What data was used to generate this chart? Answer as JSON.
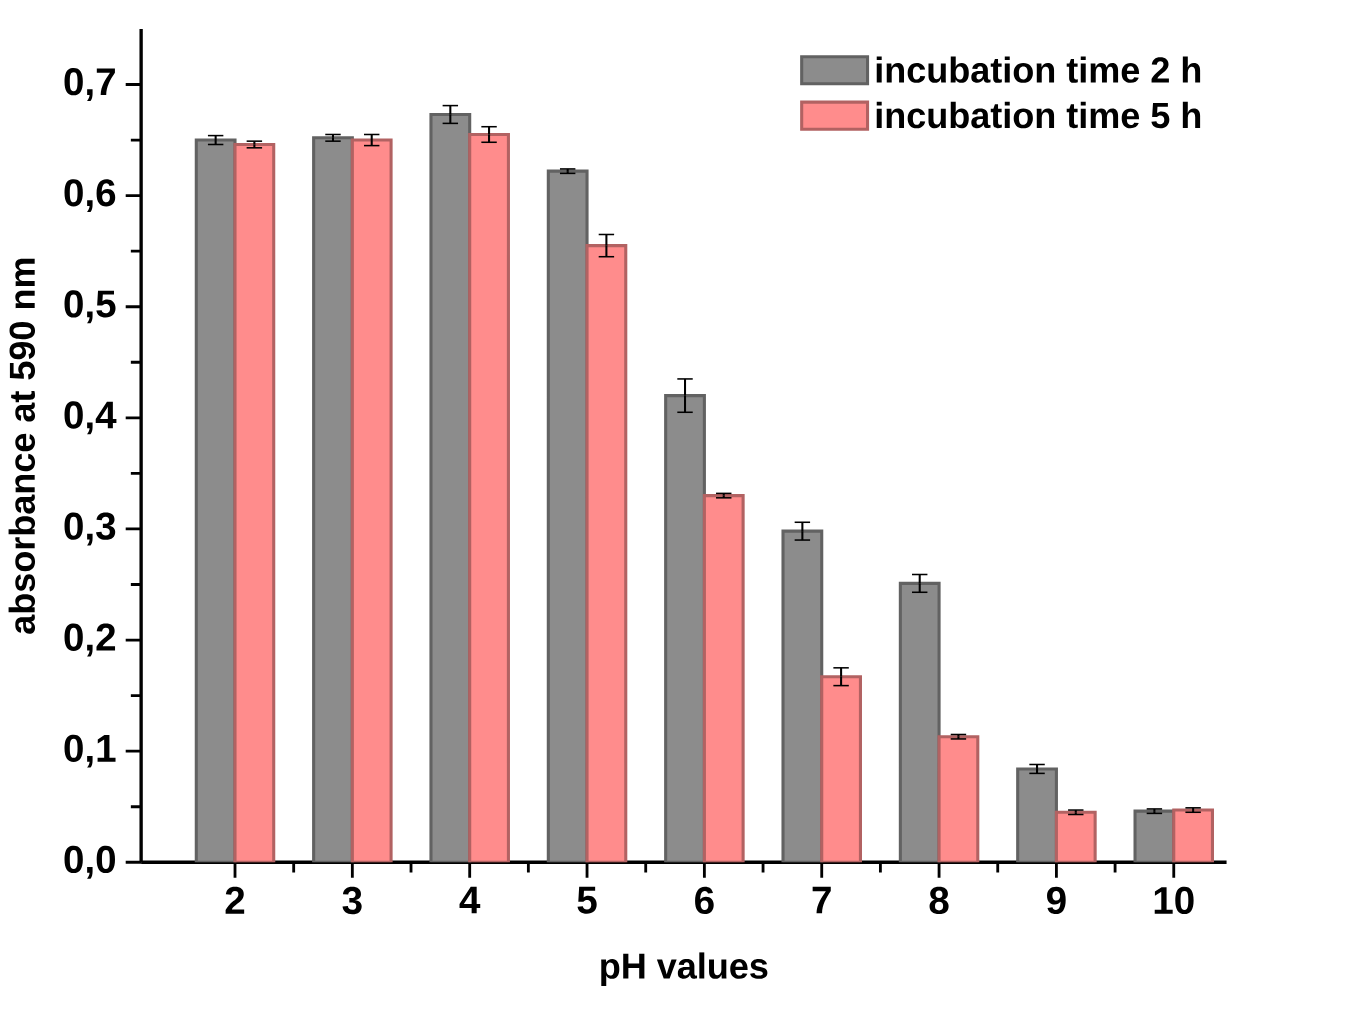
{
  "chart_data": {
    "type": "bar",
    "xlabel": "pH values",
    "ylabel": "absorbance at 590 nm",
    "categories": [
      "2",
      "3",
      "4",
      "5",
      "6",
      "7",
      "8",
      "9",
      "10"
    ],
    "series": [
      {
        "name": "incubation time 2 h",
        "color": "#8c8c8c",
        "values": [
          0.65,
          0.652,
          0.673,
          0.622,
          0.42,
          0.298,
          0.251,
          0.084,
          0.046
        ],
        "errors": [
          0.004,
          0.003,
          0.008,
          0.002,
          0.015,
          0.008,
          0.008,
          0.004,
          0.002
        ]
      },
      {
        "name": "incubation time 5 h",
        "color": "#ff8c8c",
        "values": [
          0.646,
          0.65,
          0.655,
          0.555,
          0.33,
          0.167,
          0.113,
          0.045,
          0.047
        ],
        "errors": [
          0.003,
          0.005,
          0.007,
          0.01,
          0.002,
          0.008,
          0.002,
          0.002,
          0.002
        ]
      }
    ],
    "ylim": [
      0,
      0.75
    ],
    "yticks": [
      {
        "value": 0,
        "label": "0,0"
      },
      {
        "value": 0.1,
        "label": "0,1"
      },
      {
        "value": 0.2,
        "label": "0,2"
      },
      {
        "value": 0.3,
        "label": "0,3"
      },
      {
        "value": 0.4,
        "label": "0,4"
      },
      {
        "value": 0.5,
        "label": "0,5"
      },
      {
        "value": 0.6,
        "label": "0,6"
      },
      {
        "value": 0.7,
        "label": "0,7"
      }
    ],
    "legend": "top right",
    "grid": false
  }
}
